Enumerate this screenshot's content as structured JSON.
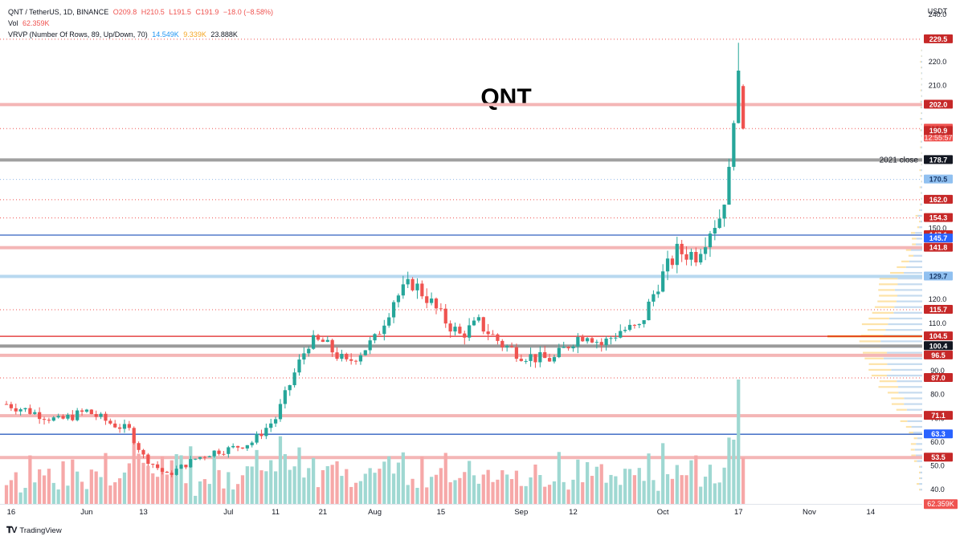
{
  "header": {
    "symbol_line": "QNT / TetherUS, 1D, BINANCE",
    "ohlc": {
      "o": "O209.8",
      "h": "H210.5",
      "l": "L191.5",
      "c": "C191.9",
      "chg": "−18.0 (−8.58%)"
    },
    "vol_label": "Vol",
    "vol_value": "62.359K",
    "vrvp_label": "VRVP (Number Of Rows, 89, Up/Down, 70)",
    "vrvp_up": "14.549K",
    "vrvp_down": "9.339K",
    "vrvp_total": "23.888K"
  },
  "footer": {
    "brand": "TradingView"
  },
  "colors": {
    "up": "#26a69a",
    "down": "#ef5350",
    "vol_up": "#9fd8d2",
    "vol_down": "#f6a8a8",
    "vp_up": "#c6dbef",
    "vp_down": "#fde3a8",
    "poc": "#f0a020"
  },
  "chart_data": {
    "type": "candlestick",
    "title": "QNT",
    "currency": "USDT",
    "ylim": [
      34,
      246
    ],
    "y_ticks": [
      40,
      50,
      60,
      70,
      80,
      90,
      110,
      120,
      150,
      210,
      220,
      240
    ],
    "x_tick_labels": [
      "16",
      "Jun",
      "13",
      "Jul",
      "11",
      "21",
      "Aug",
      "15",
      "Sep",
      "12",
      "Oct",
      "17",
      "Nov",
      "14"
    ],
    "x_tick_dates": [
      "2022-05-16",
      "2022-06-01",
      "2022-06-13",
      "2022-07-01",
      "2022-07-11",
      "2022-07-21",
      "2022-08-01",
      "2022-08-15",
      "2022-09-01",
      "2022-09-12",
      "2022-10-01",
      "2022-10-17",
      "2022-11-01",
      "2022-11-14"
    ],
    "x_range": [
      "2022-05-15",
      "2022-11-21"
    ],
    "candles_close_waypoints": [
      [
        "2022-05-15",
        76
      ],
      [
        "2022-05-20",
        73
      ],
      [
        "2022-05-26",
        69
      ],
      [
        "2022-06-01",
        73
      ],
      [
        "2022-06-06",
        68
      ],
      [
        "2022-06-10",
        65
      ],
      [
        "2022-06-13",
        54
      ],
      [
        "2022-06-18",
        46
      ],
      [
        "2022-06-24",
        53
      ],
      [
        "2022-06-28",
        56
      ],
      [
        "2022-07-01",
        57
      ],
      [
        "2022-07-06",
        60
      ],
      [
        "2022-07-11",
        70
      ],
      [
        "2022-07-15",
        89
      ],
      [
        "2022-07-18",
        102
      ],
      [
        "2022-07-21",
        102
      ],
      [
        "2022-07-26",
        93
      ],
      [
        "2022-08-01",
        103
      ],
      [
        "2022-08-05",
        120
      ],
      [
        "2022-08-09",
        127
      ],
      [
        "2022-08-12",
        121
      ],
      [
        "2022-08-15",
        113
      ],
      [
        "2022-08-19",
        105
      ],
      [
        "2022-08-23",
        110
      ],
      [
        "2022-08-28",
        101
      ],
      [
        "2022-09-01",
        97
      ],
      [
        "2022-09-05",
        95
      ],
      [
        "2022-09-08",
        95
      ],
      [
        "2022-09-12",
        103
      ],
      [
        "2022-09-15",
        106
      ],
      [
        "2022-09-18",
        101
      ],
      [
        "2022-09-22",
        107
      ],
      [
        "2022-09-26",
        108
      ],
      [
        "2022-09-30",
        127
      ],
      [
        "2022-10-04",
        140
      ],
      [
        "2022-10-08",
        139
      ],
      [
        "2022-10-11",
        150
      ],
      [
        "2022-10-13",
        155
      ],
      [
        "2022-10-15",
        172
      ],
      [
        "2022-10-16",
        200
      ],
      [
        "2022-10-17",
        210
      ],
      [
        "2022-10-18",
        191.9
      ]
    ],
    "last_candle": {
      "date": "2022-10-18",
      "open": 209.8,
      "high": 210.5,
      "low": 191.5,
      "close": 191.9
    },
    "spike_high": {
      "date": "2022-10-17",
      "high": 228
    },
    "volume_last": "62.359K",
    "levels": [
      {
        "value": 229.5,
        "label": "229.5",
        "style": "dotted",
        "color": "#ef5350",
        "box": "#c62828"
      },
      {
        "value": 202.0,
        "label": "202.0",
        "style": "band",
        "color": "#f4b6b6",
        "box": "#c62828"
      },
      {
        "value": 191.9,
        "label": "191.9",
        "style": "dotted",
        "color": "#ef5350",
        "box": "#ef5350",
        "extra": "12:55:57"
      },
      {
        "value": 190.9,
        "label": "190.9",
        "style": "none",
        "color": "#ef5350",
        "box": "#c62828"
      },
      {
        "value": 178.7,
        "label": "178.7",
        "style": "band",
        "color": "#a0a0a0",
        "box": "#131722",
        "note": "2021 close"
      },
      {
        "value": 170.5,
        "label": "170.5",
        "style": "dotted",
        "color": "#90b8e8",
        "box": "#90c0f0",
        "text_color": "#1a3a6a"
      },
      {
        "value": 162.0,
        "label": "162.0",
        "style": "dotted",
        "color": "#ef5350",
        "box": "#c62828"
      },
      {
        "value": 154.3,
        "label": "154.3",
        "style": "dotted",
        "color": "#ef5350",
        "box": "#c62828"
      },
      {
        "value": 147.1,
        "label": "147.1",
        "style": "solid",
        "color": "#3060c0",
        "box": "#c62828"
      },
      {
        "value": 145.7,
        "label": "145.7",
        "style": "none",
        "color": "#3060c0",
        "box": "#2962ff"
      },
      {
        "value": 141.8,
        "label": "141.8",
        "style": "band",
        "color": "#f4b6b6",
        "box": "#c62828"
      },
      {
        "value": 129.7,
        "label": "129.7",
        "style": "band",
        "color": "#b8d8f0",
        "box": "#90c0f0",
        "text_color": "#1a3a6a"
      },
      {
        "value": 115.7,
        "label": "115.7",
        "style": "dotted",
        "color": "#ef5350",
        "box": "#c62828"
      },
      {
        "value": 104.5,
        "label": "104.5",
        "style": "solid",
        "color": "#e02020",
        "box": "#c62828"
      },
      {
        "value": 100.4,
        "label": "100.4",
        "style": "band",
        "color": "#9a9a9a",
        "box": "#131722"
      },
      {
        "value": 96.5,
        "label": "96.5",
        "style": "band",
        "color": "#f4b6b6",
        "box": "#c62828"
      },
      {
        "value": 87.0,
        "label": "87.0",
        "style": "dotted",
        "color": "#ef5350",
        "box": "#c62828"
      },
      {
        "value": 71.1,
        "label": "71.1",
        "style": "band",
        "color": "#f4b6b6",
        "box": "#c62828"
      },
      {
        "value": 63.3,
        "label": "63.3",
        "style": "solid",
        "color": "#3060c0",
        "box": "#2962ff"
      },
      {
        "value": 53.5,
        "label": "53.5",
        "style": "band",
        "color": "#f4b6b6",
        "box": "#c62828"
      }
    ]
  }
}
